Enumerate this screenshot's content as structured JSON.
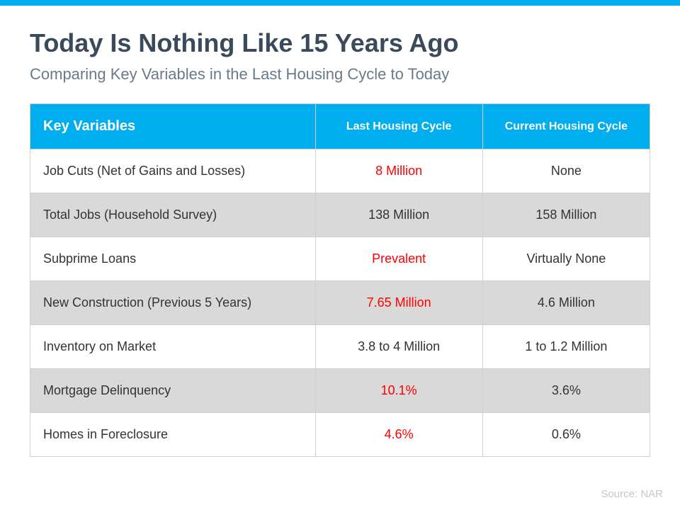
{
  "accent_color": "#00aeef",
  "title_color": "#3b4a5a",
  "subtitle_color": "#6a7a89",
  "highlight_color": "#ff0000",
  "alt_row_bg": "#d9d9d9",
  "border_color": "#d0d0d0",
  "title": "Today Is Nothing Like 15 Years Ago",
  "subtitle": "Comparing Key Variables in the Last Housing Cycle to Today",
  "table": {
    "columns": [
      "Key Variables",
      "Last Housing Cycle",
      "Current Housing Cycle"
    ],
    "rows": [
      {
        "label": "Job Cuts (Net of Gains and Losses)",
        "last": "8 Million",
        "last_hl": true,
        "current": "None",
        "current_hl": false
      },
      {
        "label": "Total Jobs (Household Survey)",
        "last": "138 Million",
        "last_hl": false,
        "current": "158 Million",
        "current_hl": false
      },
      {
        "label": "Subprime Loans",
        "last": "Prevalent",
        "last_hl": true,
        "current": "Virtually None",
        "current_hl": false
      },
      {
        "label": "New Construction (Previous 5 Years)",
        "last": "7.65 Million",
        "last_hl": true,
        "current": "4.6 Million",
        "current_hl": false
      },
      {
        "label": "Inventory on Market",
        "last": "3.8 to 4 Million",
        "last_hl": false,
        "current": "1 to 1.2 Million",
        "current_hl": false
      },
      {
        "label": "Mortgage Delinquency",
        "last": "10.1%",
        "last_hl": true,
        "current": "3.6%",
        "current_hl": false
      },
      {
        "label": "Homes in Foreclosure",
        "last": "4.6%",
        "last_hl": true,
        "current": "0.6%",
        "current_hl": false
      }
    ]
  },
  "source": "Source: NAR"
}
